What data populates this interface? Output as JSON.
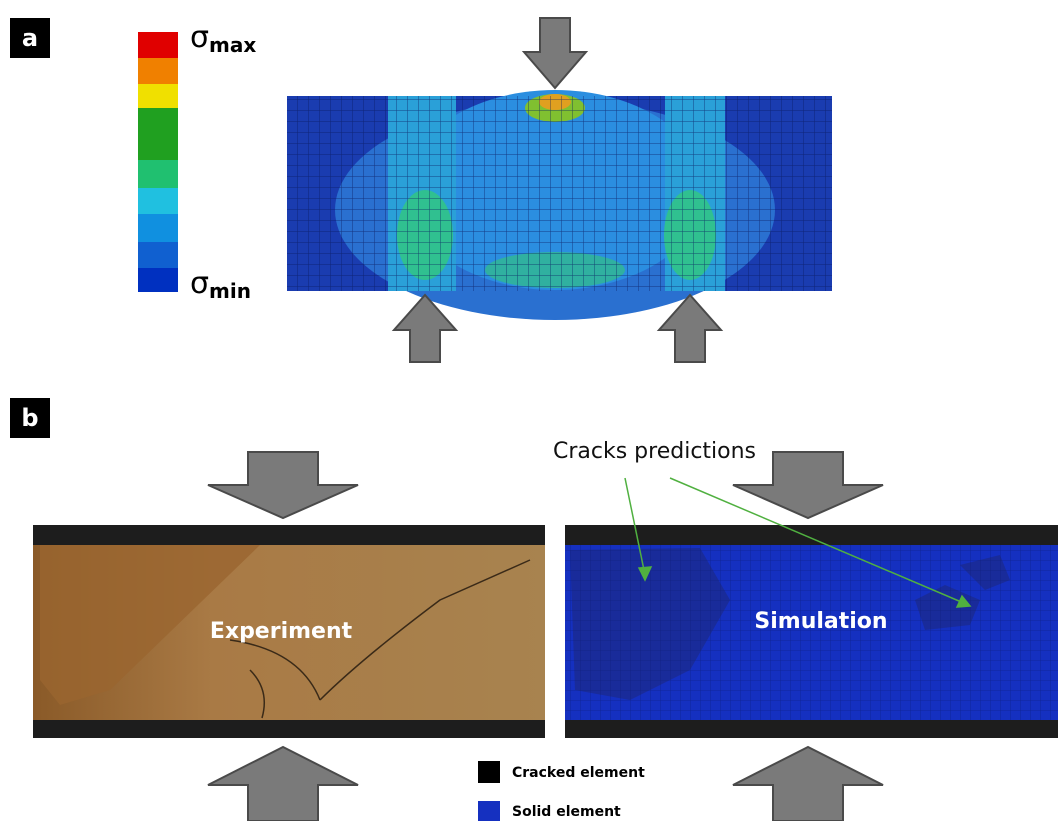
{
  "panel_a": {
    "label": "a",
    "legend": {
      "max": {
        "symbol": "σ",
        "sub": "max"
      },
      "min": {
        "symbol": "σ",
        "sub": "min"
      }
    }
  },
  "panel_b": {
    "label": "b",
    "annotation": "Cracks predictions",
    "experiment": "Experiment",
    "simulation": "Simulation",
    "legend": [
      "Cracked element",
      "Solid element"
    ]
  }
}
